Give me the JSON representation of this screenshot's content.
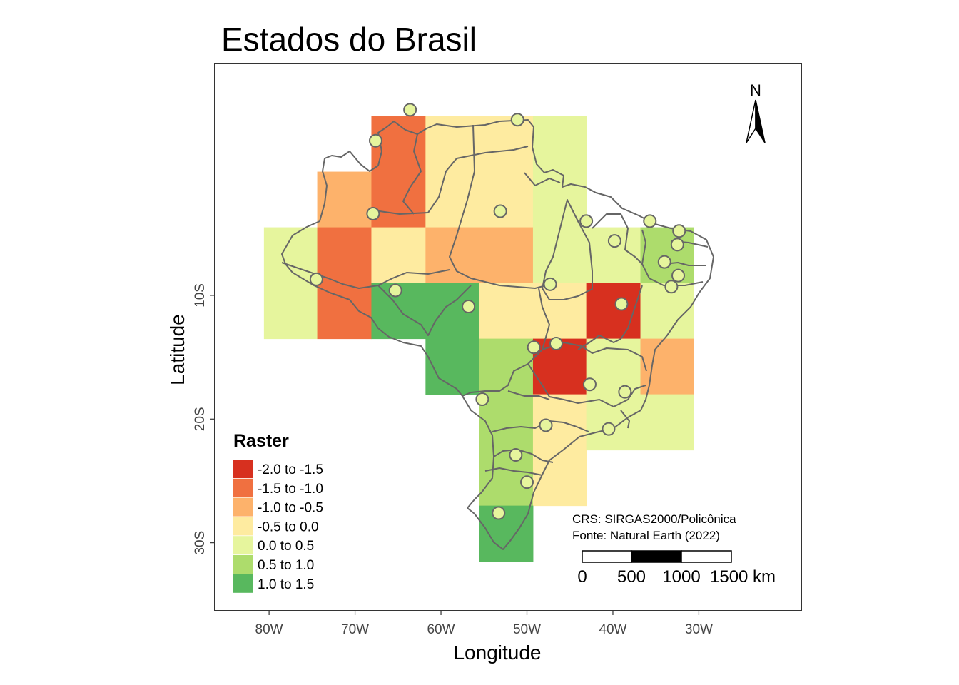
{
  "title": "Estados do Brasil",
  "axes": {
    "xlabel": "Longitude",
    "ylabel": "Latitude",
    "xticks": [
      "80W",
      "70W",
      "60W",
      "50W",
      "40W",
      "30W"
    ],
    "xtick_values": [
      -80,
      -70,
      -60,
      -50,
      -40,
      -30
    ],
    "yticks": [
      "10S",
      "20S",
      "30S"
    ],
    "ytick_values": [
      -10,
      -20,
      -30
    ]
  },
  "legend": {
    "title": "Raster",
    "items": [
      {
        "label": "-2.0 to -1.5",
        "color": "#d7301f"
      },
      {
        "label": "-1.5 to -1.0",
        "color": "#f07040"
      },
      {
        "label": "-1.0 to -0.5",
        "color": "#fdb26b"
      },
      {
        "label": "-0.5 to 0.0",
        "color": "#feeba0"
      },
      {
        "label": "0.0 to 0.5",
        "color": "#e6f59d"
      },
      {
        "label": "0.5 to 1.0",
        "color": "#addc6c"
      },
      {
        "label": "1.0 to 1.5",
        "color": "#58b85e"
      }
    ]
  },
  "annotation": {
    "crs": "CRS: SIRGAS2000/Policônica",
    "source": "Fonte: Natural Earth (2022)"
  },
  "north_arrow": {
    "label": "N"
  },
  "scale_bar": {
    "labels": [
      "0",
      "500",
      "1000",
      "1500 km"
    ]
  },
  "chart_data": {
    "type": "heatmap",
    "xlabel": "Longitude",
    "ylabel": "Latitude",
    "xlim": [
      -86.4,
      -18.0
    ],
    "ylim": [
      -35.5,
      8.8
    ],
    "cell_size_deg": [
      6.25,
      4.5
    ],
    "raster_cells": [
      {
        "lon": [
          -68.1,
          -61.8
        ],
        "lat": [
          4.5,
          0.0
        ],
        "value": -1.2,
        "class": "-1.5 to -1.0"
      },
      {
        "lon": [
          -61.8,
          -55.6
        ],
        "lat": [
          4.5,
          0.0
        ],
        "value": -0.2,
        "class": "-0.5 to 0.0"
      },
      {
        "lon": [
          -55.6,
          -49.3
        ],
        "lat": [
          4.5,
          0.0
        ],
        "value": -0.2,
        "class": "-0.5 to 0.0"
      },
      {
        "lon": [
          -49.3,
          -43.1
        ],
        "lat": [
          4.5,
          0.0
        ],
        "value": 0.2,
        "class": "0.0 to 0.5"
      },
      {
        "lon": [
          -74.4,
          -68.1
        ],
        "lat": [
          0.0,
          -4.5
        ],
        "value": -0.7,
        "class": "-1.0 to -0.5"
      },
      {
        "lon": [
          -68.1,
          -61.8
        ],
        "lat": [
          0.0,
          -4.5
        ],
        "value": -1.2,
        "class": "-1.5 to -1.0"
      },
      {
        "lon": [
          -61.8,
          -55.6
        ],
        "lat": [
          0.0,
          -4.5
        ],
        "value": -0.2,
        "class": "-0.5 to 0.0"
      },
      {
        "lon": [
          -55.6,
          -49.3
        ],
        "lat": [
          0.0,
          -4.5
        ],
        "value": -0.2,
        "class": "-0.5 to 0.0"
      },
      {
        "lon": [
          -49.3,
          -43.1
        ],
        "lat": [
          0.0,
          -4.5
        ],
        "value": 0.2,
        "class": "0.0 to 0.5"
      },
      {
        "lon": [
          -80.6,
          -74.4
        ],
        "lat": [
          -4.5,
          -9.0
        ],
        "value": 0.2,
        "class": "0.0 to 0.5"
      },
      {
        "lon": [
          -74.4,
          -68.1
        ],
        "lat": [
          -4.5,
          -9.0
        ],
        "value": -1.2,
        "class": "-1.5 to -1.0"
      },
      {
        "lon": [
          -68.1,
          -61.8
        ],
        "lat": [
          -4.5,
          -9.0
        ],
        "value": -0.2,
        "class": "-0.5 to 0.0"
      },
      {
        "lon": [
          -61.8,
          -55.6
        ],
        "lat": [
          -4.5,
          -9.0
        ],
        "value": -0.7,
        "class": "-1.0 to -0.5"
      },
      {
        "lon": [
          -55.6,
          -49.3
        ],
        "lat": [
          -4.5,
          -9.0
        ],
        "value": -0.7,
        "class": "-1.0 to -0.5"
      },
      {
        "lon": [
          -49.3,
          -43.1
        ],
        "lat": [
          -4.5,
          -9.0
        ],
        "value": 0.2,
        "class": "0.0 to 0.5"
      },
      {
        "lon": [
          -43.1,
          -36.8
        ],
        "lat": [
          -4.5,
          -9.0
        ],
        "value": 0.2,
        "class": "0.0 to 0.5"
      },
      {
        "lon": [
          -36.8,
          -30.6
        ],
        "lat": [
          -4.5,
          -9.0
        ],
        "value": 0.7,
        "class": "0.5 to 1.0"
      },
      {
        "lon": [
          -80.6,
          -74.4
        ],
        "lat": [
          -9.0,
          -13.5
        ],
        "value": 0.2,
        "class": "0.0 to 0.5"
      },
      {
        "lon": [
          -74.4,
          -68.1
        ],
        "lat": [
          -9.0,
          -13.5
        ],
        "value": -1.2,
        "class": "-1.5 to -1.0"
      },
      {
        "lon": [
          -68.1,
          -61.8
        ],
        "lat": [
          -9.0,
          -13.5
        ],
        "value": 1.2,
        "class": "1.0 to 1.5"
      },
      {
        "lon": [
          -61.8,
          -55.6
        ],
        "lat": [
          -9.0,
          -13.5
        ],
        "value": 1.2,
        "class": "1.0 to 1.5"
      },
      {
        "lon": [
          -55.6,
          -49.3
        ],
        "lat": [
          -9.0,
          -13.5
        ],
        "value": -0.2,
        "class": "-0.5 to 0.0"
      },
      {
        "lon": [
          -49.3,
          -43.1
        ],
        "lat": [
          -9.0,
          -13.5
        ],
        "value": -0.2,
        "class": "-0.5 to 0.0"
      },
      {
        "lon": [
          -43.1,
          -36.8
        ],
        "lat": [
          -9.0,
          -13.5
        ],
        "value": -1.7,
        "class": "-2.0 to -1.5"
      },
      {
        "lon": [
          -36.8,
          -30.6
        ],
        "lat": [
          -9.0,
          -13.5
        ],
        "value": 0.2,
        "class": "0.0 to 0.5"
      },
      {
        "lon": [
          -61.8,
          -55.6
        ],
        "lat": [
          -13.5,
          -18.0
        ],
        "value": 1.2,
        "class": "1.0 to 1.5"
      },
      {
        "lon": [
          -55.6,
          -49.3
        ],
        "lat": [
          -13.5,
          -18.0
        ],
        "value": 0.7,
        "class": "0.5 to 1.0"
      },
      {
        "lon": [
          -49.3,
          -43.1
        ],
        "lat": [
          -13.5,
          -18.0
        ],
        "value": -1.7,
        "class": "-2.0 to -1.5"
      },
      {
        "lon": [
          -43.1,
          -36.8
        ],
        "lat": [
          -13.5,
          -18.0
        ],
        "value": 0.2,
        "class": "0.0 to 0.5"
      },
      {
        "lon": [
          -36.8,
          -30.6
        ],
        "lat": [
          -13.5,
          -18.0
        ],
        "value": -0.7,
        "class": "-1.0 to -0.5"
      },
      {
        "lon": [
          -55.6,
          -49.3
        ],
        "lat": [
          -18.0,
          -22.5
        ],
        "value": 0.7,
        "class": "0.5 to 1.0"
      },
      {
        "lon": [
          -49.3,
          -43.1
        ],
        "lat": [
          -18.0,
          -22.5
        ],
        "value": -0.2,
        "class": "-0.5 to 0.0"
      },
      {
        "lon": [
          -43.1,
          -36.8
        ],
        "lat": [
          -18.0,
          -22.5
        ],
        "value": 0.2,
        "class": "0.0 to 0.5"
      },
      {
        "lon": [
          -36.8,
          -30.6
        ],
        "lat": [
          -18.0,
          -22.5
        ],
        "value": 0.2,
        "class": "0.0 to 0.5"
      },
      {
        "lon": [
          -55.6,
          -49.3
        ],
        "lat": [
          -22.5,
          -27.0
        ],
        "value": 0.7,
        "class": "0.5 to 1.0"
      },
      {
        "lon": [
          -49.3,
          -43.1
        ],
        "lat": [
          -22.5,
          -27.0
        ],
        "value": -0.2,
        "class": "-0.5 to 0.0"
      },
      {
        "lon": [
          -55.6,
          -49.3
        ],
        "lat": [
          -27.0,
          -31.5
        ],
        "value": 1.2,
        "class": "1.0 to 1.5"
      }
    ],
    "capital_points": [
      {
        "lon": -67.6,
        "lat": 2.5
      },
      {
        "lon": -63.6,
        "lat": 5.0
      },
      {
        "lon": -51.1,
        "lat": 4.2
      },
      {
        "lon": -67.9,
        "lat": -3.4
      },
      {
        "lon": -53.1,
        "lat": -3.2
      },
      {
        "lon": -43.1,
        "lat": -4.0
      },
      {
        "lon": -39.8,
        "lat": -5.6
      },
      {
        "lon": -35.7,
        "lat": -4.0
      },
      {
        "lon": -32.3,
        "lat": -4.8
      },
      {
        "lon": -32.5,
        "lat": -5.9
      },
      {
        "lon": -34.0,
        "lat": -7.3
      },
      {
        "lon": -32.4,
        "lat": -8.4
      },
      {
        "lon": -33.2,
        "lat": -9.3
      },
      {
        "lon": -74.5,
        "lat": -8.7
      },
      {
        "lon": -65.3,
        "lat": -9.6
      },
      {
        "lon": -56.8,
        "lat": -10.9
      },
      {
        "lon": -47.3,
        "lat": -9.1
      },
      {
        "lon": -39.0,
        "lat": -10.7
      },
      {
        "lon": -49.2,
        "lat": -14.2
      },
      {
        "lon": -46.6,
        "lat": -13.9
      },
      {
        "lon": -42.7,
        "lat": -17.2
      },
      {
        "lon": -38.6,
        "lat": -17.8
      },
      {
        "lon": -55.2,
        "lat": -18.4
      },
      {
        "lon": -47.8,
        "lat": -20.5
      },
      {
        "lon": -40.5,
        "lat": -20.8
      },
      {
        "lon": -51.3,
        "lat": -22.9
      },
      {
        "lon": -50.0,
        "lat": -25.1
      },
      {
        "lon": -53.3,
        "lat": -27.6
      }
    ],
    "grid": false,
    "legend_position": "bottom-left"
  }
}
